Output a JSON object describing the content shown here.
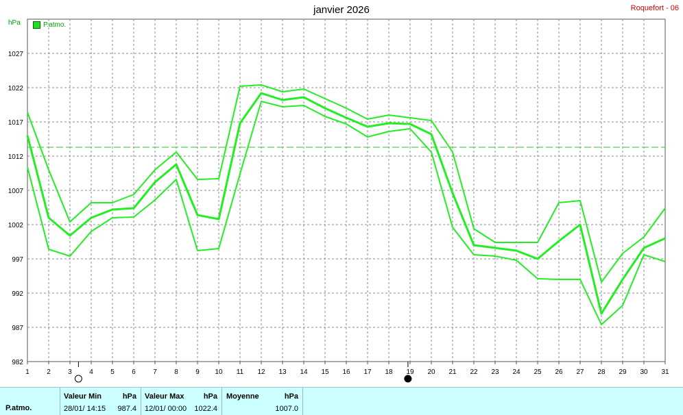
{
  "header": {
    "title": "janvier 2026",
    "station": "Roquefort - 06",
    "unit": "hPa",
    "legend": "P.atmo."
  },
  "colors": {
    "series": "#22ee22",
    "mean_line": "#22cc22",
    "grid": "#888888",
    "station": "#cc0000",
    "footer_bg": "#ccffff"
  },
  "chart_data": {
    "type": "line",
    "ylabel": "hPa",
    "ylim": [
      982,
      1032
    ],
    "yticks": [
      982,
      987,
      992,
      997,
      1002,
      1007,
      1012,
      1017,
      1022,
      1027
    ],
    "x": [
      1,
      2,
      3,
      4,
      5,
      6,
      7,
      8,
      9,
      10,
      11,
      12,
      13,
      14,
      15,
      16,
      17,
      18,
      19,
      20,
      21,
      22,
      23,
      24,
      25,
      26,
      27,
      28,
      29,
      30,
      31
    ],
    "series": [
      {
        "name": "max",
        "values": [
          1018.4,
          1010,
          1002.4,
          1005.2,
          1005.2,
          1006.4,
          1010,
          1012.6,
          1008.6,
          1008.7,
          1022.2,
          1022.4,
          1021.4,
          1021.8,
          1020.4,
          1019.0,
          1017.4,
          1018.0,
          1017.6,
          1017.2,
          1012.6,
          1001.4,
          999.4,
          999.4,
          999.4,
          1005.2,
          1005.5,
          993.6,
          997.8,
          1000.2,
          1004.4
        ]
      },
      {
        "name": "moy",
        "values": [
          1015.0,
          1003.0,
          1000.4,
          1003.0,
          1004.2,
          1004.4,
          1008.2,
          1010.8,
          1003.4,
          1002.8,
          1016.8,
          1021.2,
          1020.2,
          1020.6,
          1019.0,
          1017.6,
          1016.3,
          1016.8,
          1016.7,
          1015.2,
          1006.6,
          999.0,
          998.6,
          998.2,
          997.0,
          999.6,
          1002.0,
          989.0,
          994.0,
          998.6,
          1000.0
        ]
      },
      {
        "name": "min",
        "values": [
          1010.4,
          998.4,
          997.4,
          1001.0,
          1003.0,
          1003.1,
          1005.6,
          1008.6,
          998.2,
          998.5,
          1009.4,
          1020.0,
          1019.2,
          1019.4,
          1017.8,
          1016.7,
          1014.8,
          1015.6,
          1016.0,
          1012.6,
          1001.6,
          997.6,
          997.4,
          996.8,
          994.1,
          994.0,
          994.0,
          987.4,
          990.2,
          997.6,
          996.6
        ]
      }
    ],
    "mean_reference": 1013.3,
    "grid": true,
    "moon_markers": [
      {
        "day": 3.4,
        "phase": "full"
      },
      {
        "day": 18.9,
        "phase": "new"
      }
    ]
  },
  "footer": {
    "row_label": "P.atmo.",
    "min_title": "Valeur Min",
    "min_unit": "hPa",
    "min_date": "28/01/  14:15",
    "min_value": "987.4",
    "max_title": "Valeur Max",
    "max_unit": "hPa",
    "max_date": "12/01/  00:00",
    "max_value": "1022.4",
    "avg_title": "Moyenne",
    "avg_unit": "hPa",
    "avg_value": "1007.0"
  }
}
